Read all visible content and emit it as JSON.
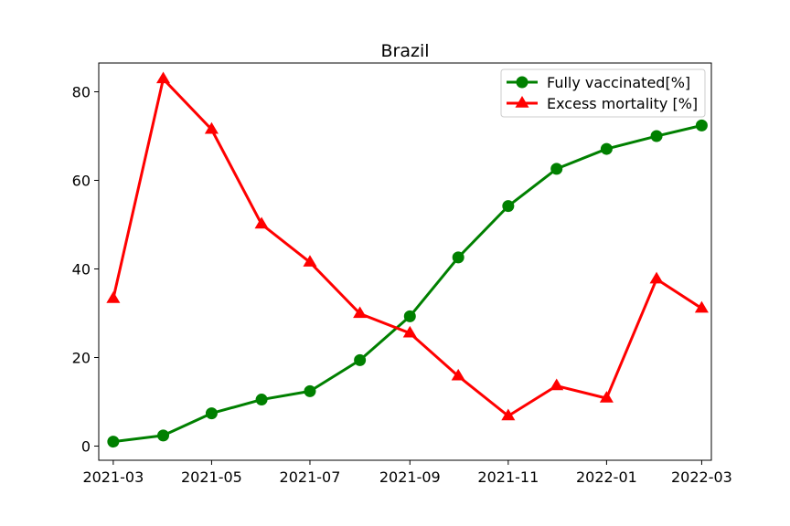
{
  "chart_data": {
    "type": "line",
    "title": "Brazil",
    "xlabel": "",
    "ylabel": "",
    "x": [
      "2021-03-01",
      "2021-04-01",
      "2021-05-01",
      "2021-06-01",
      "2021-07-01",
      "2021-08-01",
      "2021-09-01",
      "2021-10-01",
      "2021-11-01",
      "2021-12-01",
      "2022-01-01",
      "2022-02-01",
      "2022-03-01"
    ],
    "x_ticks": [
      "2021-03",
      "2021-05",
      "2021-07",
      "2021-09",
      "2021-11",
      "2022-01",
      "2022-03"
    ],
    "y_ticks": [
      0,
      20,
      40,
      60,
      80
    ],
    "xlim": [
      "2021-02-20",
      "2022-03-07"
    ],
    "ylim": [
      -3.2,
      86.5
    ],
    "grid": false,
    "legend_position": "upper right",
    "series": [
      {
        "name": "Fully vaccinated[%]",
        "color": "#008000",
        "marker": "circle",
        "values": [
          1.0,
          2.4,
          7.4,
          10.5,
          12.4,
          19.4,
          29.3,
          42.6,
          54.2,
          62.6,
          67.1,
          70.0,
          72.4
        ]
      },
      {
        "name": "Excess mortality [%]",
        "color": "#ff0000",
        "marker": "triangle",
        "values": [
          33.3,
          82.9,
          71.5,
          50.1,
          41.5,
          29.9,
          25.5,
          15.8,
          6.8,
          13.6,
          10.8,
          37.7,
          31.1
        ]
      }
    ]
  }
}
